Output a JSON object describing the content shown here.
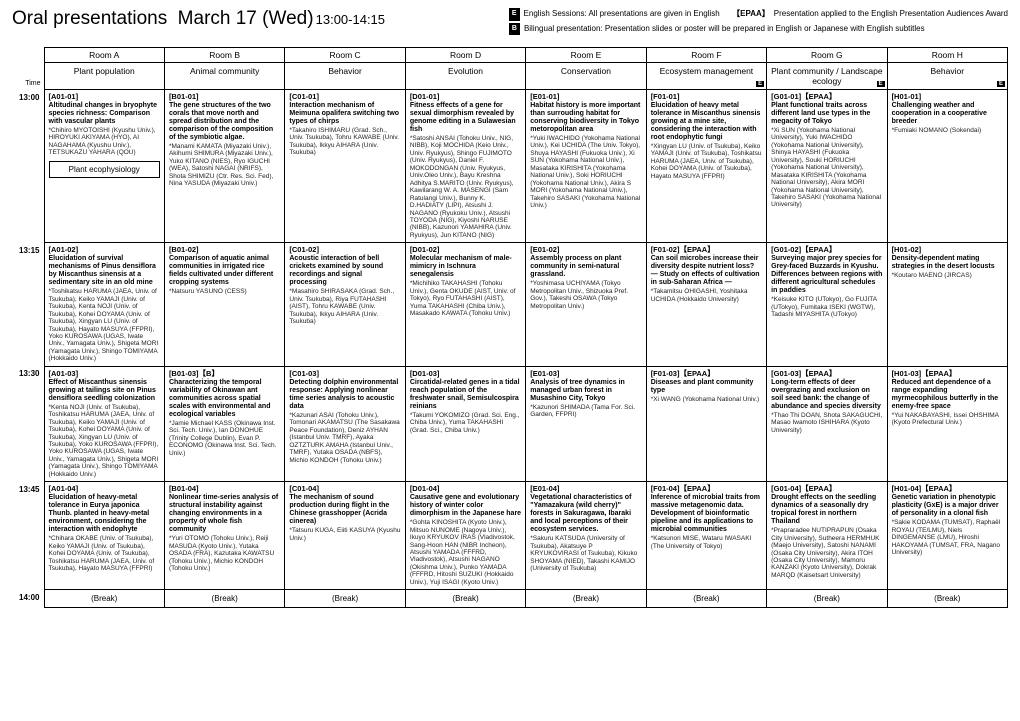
{
  "header": {
    "title": "Oral presentations",
    "date": "March 17 (Wed)",
    "time": "13:00-14:15",
    "legend": [
      {
        "tag": "E",
        "text": "English Sessions: All presentations are given in English",
        "epaa": "【EPAA】",
        "epaa_text": "Presentation applied to the English Presentation Audiences Award"
      },
      {
        "tag": "B",
        "text": "Bilingual presentation: Presentation slides or poster will be prepared in English or Japanese with English subtitles"
      }
    ]
  },
  "rooms": [
    "Room A",
    "Room B",
    "Room C",
    "Room D",
    "Room E",
    "Room F",
    "Room G",
    "Room H"
  ],
  "topics": [
    {
      "label": "Plant population",
      "e": false
    },
    {
      "label": "Animal community",
      "e": false
    },
    {
      "label": "Behavior",
      "e": false
    },
    {
      "label": "Evolution",
      "e": false
    },
    {
      "label": "Conservation",
      "e": false
    },
    {
      "label": "Ecosystem management",
      "e": true
    },
    {
      "label": "Plant community / Landscape ecology",
      "e": true
    },
    {
      "label": "Behavior",
      "e": true
    }
  ],
  "times": [
    "13:00",
    "13:15",
    "13:30",
    "13:45",
    "14:00"
  ],
  "grid": [
    [
      {
        "code": "[A01-01]",
        "title": "Altitudinal changes in bryophyte species richness: Comparison with vascular plants",
        "authors": "*Chihiro MYOTOISHI (Kyushu Univ.), HIROYUKI AKIYAMA (HYO), AI NAGAHAMA (Kyushu Univ.), TETSUKAZU YAHARA (QOU)",
        "sub": "Plant ecophysiology"
      },
      {
        "code": "[B01-01]",
        "title": "The gene structures of the two corals that move north and spread distribution and the comparison of the composition of the symbiotic algae.",
        "authors": "*Manami KAMATA (Miyazaki Univ.), Akihumi SHIMURA (Miyazaki Univ.), Yuko KITANO (NIES), Ryo IGUCHI (WEA), Satoshi NAGAI (NRIFS), Shota SHIMIZU (Ctr. Res. Sci. Fed), Nina YASUDA (Miyazaki Univ.)"
      },
      {
        "code": "[C01-01]",
        "title": "Interaction mechanism of Meimuna opalifera switching two types of chirps",
        "authors": "*Takahiro ISHIMARU (Grad. Sch., Univ. Tsukuba), Tohru KAWABE (Univ. Tsukuba), Ikkyu AIHARA (Univ. Tsukuba)"
      },
      {
        "code": "[D01-01]",
        "title": "Fitness effects of a gene for sexual dimorphism revealed by genome editing in a Sulawesian fish",
        "authors": "*Satoshi ANSAI (Tohoku Univ., NIG, NIBB), Koji MOCHIDA (Keio Univ., Univ. Ryukyus), Shingo FUJIMOTO (Univ. Ryukyus), Daniel F. MOKODONGAN (Univ. Ryukyus, Univ.Oleo Univ.), Bayu Kreshna Adhitya S.MARITO (Univ. Ryukyus), Kawilarang W. A. MASENGI (Sam Ratulangi Univ.), Bunny K. D.HADIATY (LIPI), Atsushi J. NAGANO (Ryukoku Univ.), Atsushi TOYODA (NIG), Kiyoshi NARUSE (NIBB), Kazunori YAMAHIRA (Univ. Ryukyus), Jun KITANO (NIG)"
      },
      {
        "code": "[E01-01]",
        "title": "Habitat history is more important than surrouding habitat for conserving biodiversity in Tokyo metoropolitan area",
        "authors": "*Yuki IWACHIDO (Yokohama National Univ.), Kei UCHIDA (The Univ. Tokyo), Shuya HAYASHI (Fukuoka Univ.), Xi SUN (Yokohama National Univ.), Masataka KIRISHITA (Yokohama National Univ.), Soki HORIUCHI (Yokohama National Univ.), Akira S MORI (Yokohama National Univ.), Takehiro SASAKI (Yokohama National Univ.)"
      },
      {
        "code": "[F01-01]",
        "title": "Elucidation of heavy metal tolerance in Miscanthus sinensis growing at a mine site, considering the interaction with root endophytic fungi",
        "authors": "*Xingyan LU (Univ. of Tsukuba), Keiko YAMAJI (Univ. of Tsukuba), Toshikatsu HARUMA (JAEA, Univ. of Tsukuba), Kohei DOYAMA (Univ. of Tsukuba), Hayato MASUYA (FFPRI)"
      },
      {
        "code": "[G01-01]【EPAA】",
        "title": "Plant functional traits across different land use types in the megacity of Tokyo",
        "authors": "*Xi SUN (Yokohama National University), Yuki IWACHIDO (Yokohama National University), Shinya HAYASHI (Fukuoka University), Souki HORIUCHI (Yokohama National University), Masataka KIRISHITA (Yokohama National University), Akira MORI (Yokohama National University), Takehiro SASAKI (Yokohama National University)"
      },
      {
        "code": "[H01-01]",
        "title": "Challenging weather and cooperation in a cooperative breeder",
        "authors": "*Fumiaki NOMANO (Sokendai)"
      }
    ],
    [
      {
        "code": "[A01-02]",
        "title": "Elucidation of survival mechanisms of Pinus densiflora by Miscanthus sinensis at a sedimentary site in an old mine",
        "authors": "*Toshikatsu HARUMA (JAEA, Univ. of Tsukuba), Keiko YAMAJI (Univ. of Tsukuba), Kenta NOJI (Univ. of Tsukuba), Kohei DOYAMA (Univ. of Tsukuba), Xingyan LU (Univ. of Tsukuba), Hayato MASUYA (FFPRI), Yoko KUROSAWA (UGAS, Iwate Univ., Yamagata Univ.), Shigeta MORI (Yamagata Univ.), Shingo TOMIYAMA (Hokkaido Univ.)"
      },
      {
        "code": "[B01-02]",
        "title": "Comparison of aquatic animal communities in irrigated rice fields cultivated under different cropping systems",
        "authors": "*Natsuru YASUNO (CESS)"
      },
      {
        "code": "[C01-02]",
        "title": "Acoustic interaction of bell crickets examined by sound recordings and signal processing",
        "authors": "*Masahiro SHIRASAKA (Grad. Sch., Univ. Tsukuba), Riya FUTAHASHI (AIST), Tohru KAWABE (Univ. Tsukuba), Ikkyu AIHARA (Univ. Tsukuba)"
      },
      {
        "code": "[D01-02]",
        "title": "Molecular mechanism of male-mimicry in Ischnura senegalensis",
        "authors": "*Michihiko TAKAHASHI (Tohoku Univ.), Genta OKUDE (AIST, Univ. of Tokyo), Ryo FUTAHASHI (AIST), Yuma TAKAHASHI (Chiba Univ.), Masakado KAWATA (Tohoku Univ.)"
      },
      {
        "code": "[E01-02]",
        "title": "Assembly process on plant community in semi-natural grassland.",
        "authors": "*Yoshimasa UCHIYAMA (Tokyo Metropolitan Univ., Shizuoka Pref. Gov.), Takeshi OSAWA (Tokyo Metropolitan Univ.)"
      },
      {
        "code": "[F01-02]【EPAA】",
        "title": "Can soil microbes increase their diversity despite nutrient loss? ― Study on effects of cultivation in sub-Saharan Africa ―",
        "authors": "*Takamitsu OHIGASHI, Yoshitaka UCHIDA (Hokkaido University)"
      },
      {
        "code": "[G01-02]【EPAA】",
        "title": "Surveying major prey species for Grey-faced Buzzards in Kyushu. Differences between regions with different agricultural schedules in paddies",
        "authors": "*Keisuke KITO (UTokyo), Go FUJITA (UTokyo), Fumitaka ISEKI (WGTW), Tadashi MIYASHITA (UTokyo)"
      },
      {
        "code": "[H01-02]",
        "title": "Density-dependent mating strategies in the desert locusts",
        "authors": "*Koutaro MAENO (JIRCAS)"
      }
    ],
    [
      {
        "code": "[A01-03]",
        "title": "Effect of Miscanthus sinensis growing at tailings site on Pinus densiflora seedling colonization",
        "authors": "*Kenta NOJI (Univ. of Tsukuba), Toshikatsu HARUMA (JAEA, Univ. of Tsukuba), Keiko YAMAJI (Univ. of Tsukuba), Kohei DOYAMA (Univ. of Tsukuba), Xingyan LU (Univ. of Tsukuba), Yoko KUROSAWA (FFPRI), Yoko KUROSAWA (UGAS, Iwate Univ., Yamagata Univ.), Shigeta MORI (Yamagata Univ.), Shingo TOMIYAMA (Hokkaido Univ.)"
      },
      {
        "code": "[B01-03]【B】",
        "title": "Characterizing the temporal variability of Okinawan ant communities across spatial scales with environmental and ecological variables",
        "authors": "*Jamie Michael KASS (Okinawa Inst. Sci. Tech. Univ.), Ian DONOHUE (Trinity College Dublin), Evan P. ECONOMO (Okinawa Inst. Sci. Tech. Univ.)"
      },
      {
        "code": "[C01-03]",
        "title": "Detecting dolphin environmental response: Applying nonlinear time series analysis to acoustic data",
        "authors": "*Kazunari ASAI (Tohoku Univ.), Tomonari AKAMATSU (The Sasakawa Peace Foundation), Deniz AYHAN (Istanbul Univ. TMRF), Ayaka OZTZTURK AMAHA (Istanbul Univ., TMRF), Yutaka OSADA (NBFS), Michio KONDOH (Tohoku Univ.)"
      },
      {
        "code": "[D01-03]",
        "title": "Circatidal-related genes in a tidal reach population of the freshwater snail, Semisulcospira reinians",
        "authors": "*Takumi YOKOMIZO (Grad. Sci. Eng., Chiba Univ.), Yuma TAKAHASHI (Grad. Sci., Chiba Univ.)"
      },
      {
        "code": "[E01-03]",
        "title": "Analysis of tree dynamics in managed urban forest in Musashino City, Tokyo",
        "authors": "*Kazunori SHIMADA (Tama For. Sci. Garden, FFPRI)"
      },
      {
        "code": "[F01-03]【EPAA】",
        "title": "Diseases and plant community type",
        "authors": "*Xi WANG (Yokohama National Univ.)"
      },
      {
        "code": "[G01-03]【EPAA】",
        "title": "Long-term effects of deer overgrazing and exclusion on soil seed bank: the change of abundance and species diversity",
        "authors": "*Thao Thi DOAN, Shota SAKAGUCHI, Masao Iwamoto ISHIHARA (Kyoto University)"
      },
      {
        "code": "[H01-03]【EPAA】",
        "title": "Reduced ant dependence of a range expanding myrmecophilous butterfly in the enemy-free space",
        "authors": "*Yui NAKABAYASHI, Issei OHSHIMA (Kyoto Prefectural Univ.)"
      }
    ],
    [
      {
        "code": "[A01-04]",
        "title": "Elucidation of heavy-metal tolerance in Eurya japonica Thunb. planted in heavy-metal environment, considering the interaction with endophyte",
        "authors": "*Chihara OKABE (Univ. of Tsukuba), Keiko YAMAJI (Univ. of Tsukuba), Kohei DOYAMA (Univ. of Tsukuba), Toshikatsu HARUMA (JAEA, Univ. of Tsukuba), Hayato MASUYA (FFPRI)"
      },
      {
        "code": "[B01-04]",
        "title": "Nonlinear time-series analysis of structural instability against changing environments in a property of whole fish community",
        "authors": "*Yuri OTOMO (Tohoku Univ.), Reiji MASUDA (Kyoto Univ.), Yutaka OSADA (FRA), Kazutaka KAWATSU (Tohoku Univ.), Michio KONDOH (Tohoku Univ.)"
      },
      {
        "code": "[C01-04]",
        "title": "The mechanism of sound production during flight in the Chinese grasshopper (Acrida cinerea)",
        "authors": "*Tatsuru KUGA, Eiiti KASUYA (Kyushu Univ.)"
      },
      {
        "code": "[D01-04]",
        "title": "Causative gene and evolutionary history of winter color dimorphism in the Japanese hare",
        "authors": "*Gohta KINOSHITA (Kyoto Univ.), Mitsuo NUNOME (Nagoya Univ.), Ikuyo KRYUKOV IRAS (Vladivostok, Sang-Hoon HAN (NIBR Incheon), Atsushi YAMADA (FFFRD, Vladivostok), Atsushi NAGANO (Okishma Univ.), Punko YAMADA (FFFRD, Hitoshi SUZUKI (Hokkaido Univ.), Yuji ISAGI (Kyoto Univ.)"
      },
      {
        "code": "[E01-04]",
        "title": "Vegetational characteristics of \"Yamazakura (wild cherry)\" forests in Sakuragawa, Ibaraki and local perceptions of their ecosystem services.",
        "authors": "*Sakuru KATSUDA (University of Tsukuba), Akatsuye P KRYUKOVIRASI of Tsukuba), Kikuko SHOYAMA (NIED), Takashi KAMIJO (University of Tsukuba)"
      },
      {
        "code": "[F01-04]【EPAA】",
        "title": "Inference of microbial traits from massive metagenomic data. Development of bioinformatic pipeline and its applications to microbial communities",
        "authors": "*Katsunori MISE, Wataru IWASAKI (The University of Tokyo)"
      },
      {
        "code": "[G01-04]【EPAA】",
        "title": "Drought effects on the seedling dynamics of a seasonally dry tropical forest in northern Thailand",
        "authors": "*Prapraradee NUTIPRAPUN (Osaka City University), Sutheera HERMHUK (Maejo University), Satoshi NANAMI (Osaka City University), Akira ITOH (Osaka City University), Mamoru KANZAKI (Kyoto University), Dokrak MARQD (Kaisetsart University)"
      },
      {
        "code": "[H01-04]【EPAA】",
        "title": "Genetic variation in phenotypic plasticity (GxE) is a major driver of personality in a clonal fish",
        "authors": "*Sakie KODAMA (TUMSAT), Raphaël ROYAU (TE/LMU), Niels DINGEMANSE (LMU), Hiroshi HAKOYAMA (TUMSAT, FRA, Nagano University)"
      }
    ]
  ],
  "break_label": "(Break)"
}
